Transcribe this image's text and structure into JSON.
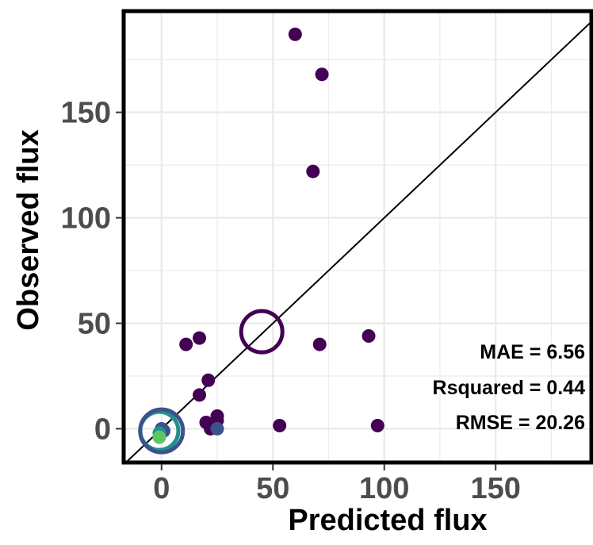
{
  "chart_data": {
    "type": "scatter",
    "xlabel": "Predicted flux",
    "ylabel": "Observed flux",
    "xlim": [
      -17,
      193
    ],
    "ylim": [
      -16,
      198
    ],
    "x_ticks": [
      0,
      50,
      100,
      150
    ],
    "y_ticks": [
      0,
      50,
      100,
      150
    ],
    "x_tick_labels": [
      "0",
      "50",
      "100",
      "150"
    ],
    "y_tick_labels": [
      "0",
      "50",
      "100",
      "150"
    ],
    "grid": true,
    "reference_line": "y = x",
    "annotations": [
      "MAE = 6.56",
      "Rsquared = 0.44",
      "RMSE = 20.26"
    ],
    "colors": {
      "point_purple": "#440154",
      "point_blue": "#3b528b",
      "point_teal": "#21908c",
      "point_green": "#5dc863",
      "grid": "#ebebeb",
      "tick_text": "#4d4d4d"
    },
    "points": [
      {
        "x": 60,
        "y": 187,
        "color": "#440154"
      },
      {
        "x": 72,
        "y": 168,
        "color": "#440154"
      },
      {
        "x": 68,
        "y": 122,
        "color": "#440154"
      },
      {
        "x": 93,
        "y": 44,
        "color": "#440154"
      },
      {
        "x": 71,
        "y": 40,
        "color": "#440154"
      },
      {
        "x": 17,
        "y": 43,
        "color": "#440154"
      },
      {
        "x": 11,
        "y": 40,
        "color": "#440154"
      },
      {
        "x": 21,
        "y": 23,
        "color": "#440154"
      },
      {
        "x": 17,
        "y": 16,
        "color": "#440154"
      },
      {
        "x": 20,
        "y": 3,
        "color": "#440154"
      },
      {
        "x": 25,
        "y": 6,
        "color": "#440154"
      },
      {
        "x": 25,
        "y": 4,
        "color": "#440154"
      },
      {
        "x": 22,
        "y": 0,
        "color": "#440154"
      },
      {
        "x": 25,
        "y": 0,
        "color": "#3b528b"
      },
      {
        "x": 53,
        "y": 1.5,
        "color": "#440154"
      },
      {
        "x": 97,
        "y": 1.5,
        "color": "#440154"
      },
      {
        "x": 0,
        "y": 0,
        "color": "#3b528b"
      },
      {
        "x": 1,
        "y": -1,
        "color": "#3b528b"
      },
      {
        "x": -1,
        "y": -2,
        "color": "#21908c"
      },
      {
        "x": -1,
        "y": -4,
        "color": "#5dc863"
      }
    ],
    "open_circles": [
      {
        "x": 45,
        "y": 46,
        "color": "#440154"
      },
      {
        "x": -1,
        "y": -1,
        "color": "#21908c"
      },
      {
        "x": 0,
        "y": -1,
        "color": "#3b528b"
      }
    ]
  }
}
